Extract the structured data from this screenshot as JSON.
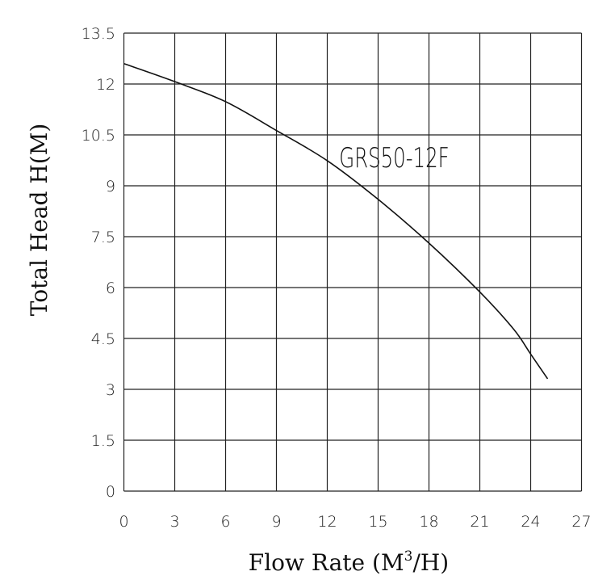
{
  "chart_data": {
    "type": "line",
    "title": "",
    "xlabel": "Flow Rate (M",
    "xlabel_sup": "3",
    "xlabel_tail": "/H)",
    "ylabel": "Total Head H(M)",
    "xlim": [
      0,
      27
    ],
    "ylim": [
      0,
      13.5
    ],
    "grid": true,
    "xticks": [
      "0",
      "3",
      "6",
      "9",
      "12",
      "15",
      "18",
      "21",
      "24",
      "27"
    ],
    "yticks": [
      "0",
      "1.5",
      "3",
      "4.5",
      "6",
      "7.5",
      "9",
      "10.5",
      "12",
      "13.5"
    ],
    "annotation": "GRS50-12F",
    "series": [
      {
        "x": [
          0,
          3,
          6,
          9,
          12,
          15,
          18,
          21,
          23,
          24,
          25
        ],
        "y": [
          12.6,
          12.07,
          11.48,
          10.63,
          9.74,
          8.6,
          7.31,
          5.87,
          4.77,
          4.04,
          3.31
        ]
      }
    ],
    "colors": {
      "line": "#111111",
      "grid": "#222222"
    }
  }
}
